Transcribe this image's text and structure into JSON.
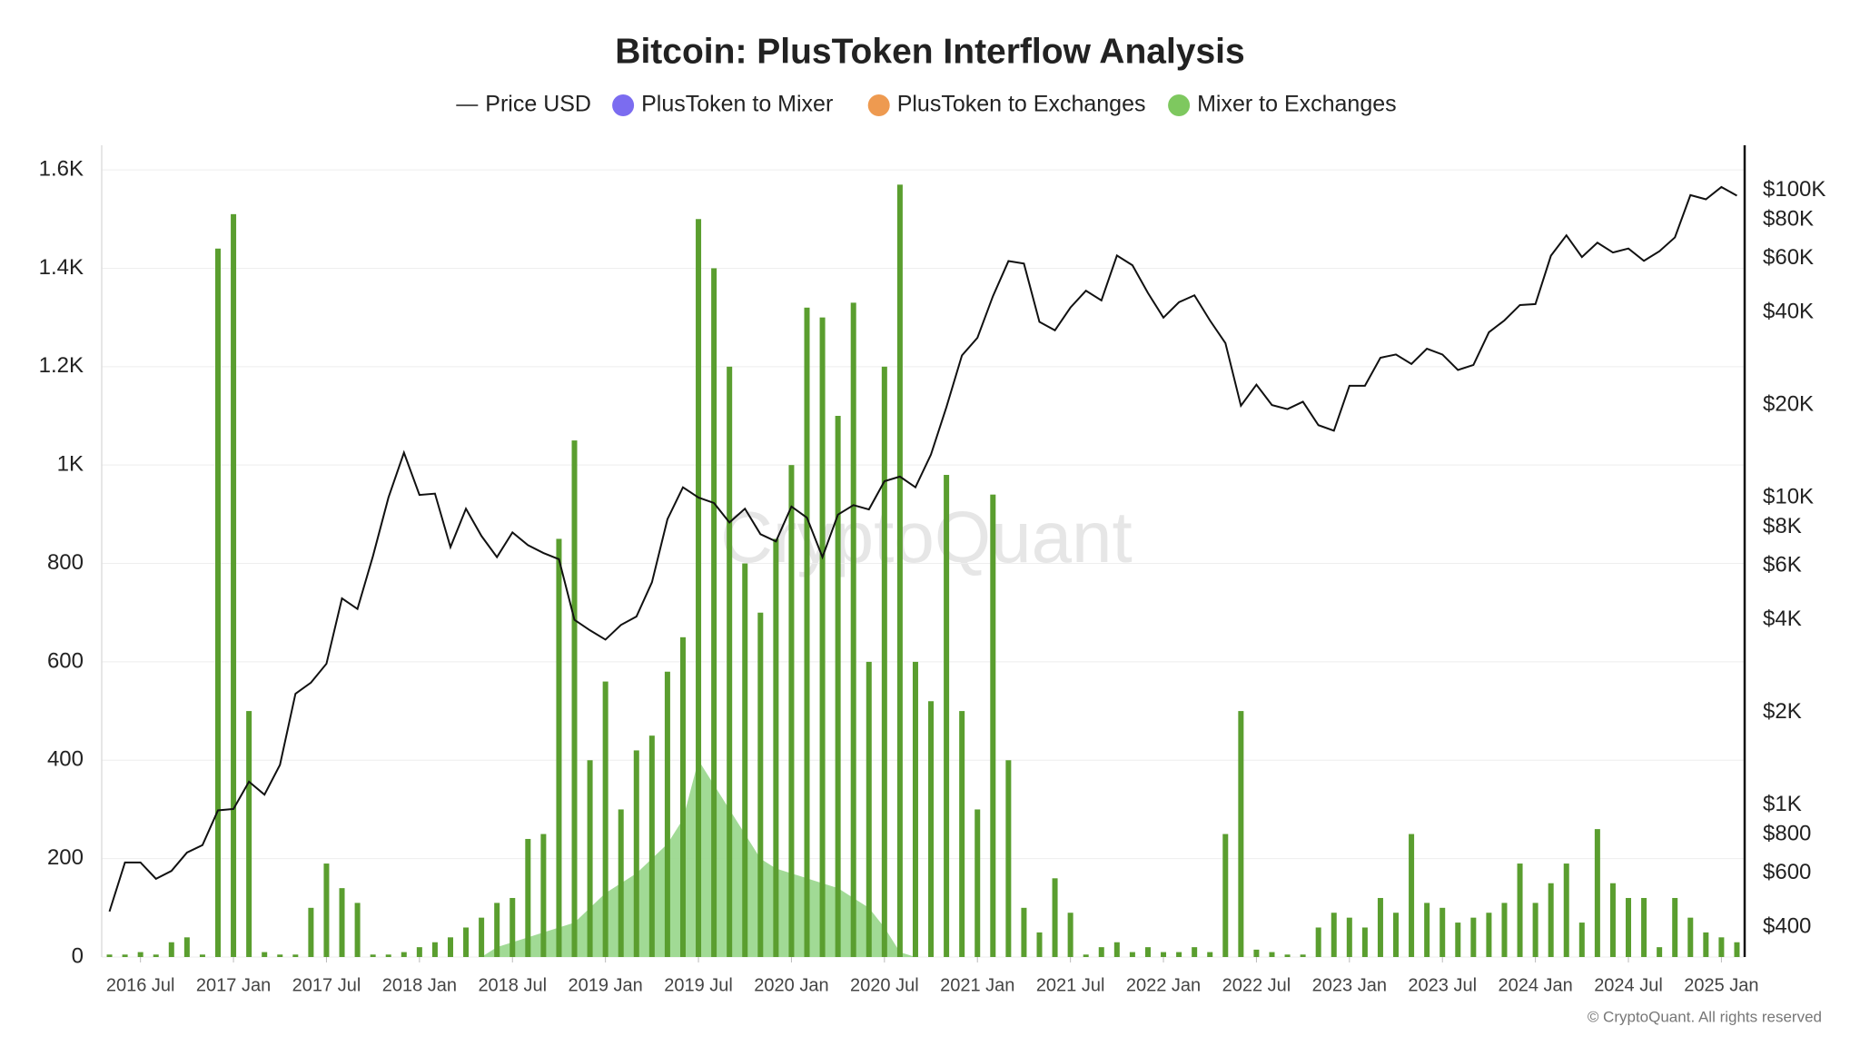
{
  "chart_data": {
    "type": "combo",
    "title": "Bitcoin: PlusToken Interflow Analysis",
    "watermark": "CryptoQuant",
    "footnote": "© CryptoQuant. All rights reserved",
    "grid": true,
    "legend": "top",
    "y2_log": true,
    "x": [
      "2016-05",
      "2016-06",
      "2016-07",
      "2016-08",
      "2016-09",
      "2016-10",
      "2016-11",
      "2016-12",
      "2017-01",
      "2017-02",
      "2017-03",
      "2017-04",
      "2017-05",
      "2017-06",
      "2017-07",
      "2017-08",
      "2017-09",
      "2017-10",
      "2017-11",
      "2017-12",
      "2018-01",
      "2018-02",
      "2018-03",
      "2018-04",
      "2018-05",
      "2018-06",
      "2018-07",
      "2018-08",
      "2018-09",
      "2018-10",
      "2018-11",
      "2018-12",
      "2019-01",
      "2019-02",
      "2019-03",
      "2019-04",
      "2019-05",
      "2019-06",
      "2019-07",
      "2019-08",
      "2019-09",
      "2019-10",
      "2019-11",
      "2019-12",
      "2020-01",
      "2020-02",
      "2020-03",
      "2020-04",
      "2020-05",
      "2020-06",
      "2020-07",
      "2020-08",
      "2020-09",
      "2020-10",
      "2020-11",
      "2020-12",
      "2021-01",
      "2021-02",
      "2021-03",
      "2021-04",
      "2021-05",
      "2021-06",
      "2021-07",
      "2021-08",
      "2021-09",
      "2021-10",
      "2021-11",
      "2021-12",
      "2022-01",
      "2022-02",
      "2022-03",
      "2022-04",
      "2022-05",
      "2022-06",
      "2022-07",
      "2022-08",
      "2022-09",
      "2022-10",
      "2022-11",
      "2022-12",
      "2023-01",
      "2023-02",
      "2023-03",
      "2023-04",
      "2023-05",
      "2023-06",
      "2023-07",
      "2023-08",
      "2023-09",
      "2023-10",
      "2023-11",
      "2023-12",
      "2024-01",
      "2024-02",
      "2024-03",
      "2024-04",
      "2024-05",
      "2024-06",
      "2024-07",
      "2024-08",
      "2024-09",
      "2024-10",
      "2024-11",
      "2024-12",
      "2025-01",
      "2025-02"
    ],
    "series": [
      {
        "name": "Price USD",
        "type": "line",
        "axis": "y2",
        "color": "#111111",
        "values": [
          450,
          650,
          650,
          575,
          610,
          700,
          740,
          960,
          970,
          1190,
          1080,
          1350,
          2300,
          2500,
          2880,
          4700,
          4340,
          6450,
          10000,
          14000,
          10200,
          10300,
          6900,
          9200,
          7500,
          6400,
          7700,
          7000,
          6600,
          6300,
          4000,
          3700,
          3450,
          3850,
          4100,
          5300,
          8500,
          10800,
          10000,
          9600,
          8300,
          9200,
          7600,
          7200,
          9350,
          8600,
          6400,
          8800,
          9450,
          9150,
          11300,
          11700,
          10800,
          13800,
          19700,
          29000,
          33100,
          45200,
          58800,
          57700,
          37300,
          35000,
          41500,
          47100,
          43800,
          61300,
          57000,
          46300,
          38500,
          43200,
          45500,
          37700,
          31800,
          19900,
          23300,
          20000,
          19400,
          20500,
          17200,
          16500,
          23100,
          23100,
          28500,
          29200,
          27200,
          30500,
          29200,
          26000,
          27000,
          34500,
          37700,
          42300,
          42600,
          61200,
          71300,
          60600,
          67500,
          62700,
          64600,
          58900,
          63300,
          70200,
          96400,
          93400,
          102400,
          96000
        ]
      },
      {
        "name": "PlusToken to Mixer",
        "type": "area",
        "color": "#7b6cf0",
        "fill": "#97d68a",
        "values": [
          0,
          0,
          0,
          0,
          0,
          0,
          0,
          0,
          0,
          0,
          0,
          0,
          0,
          0,
          0,
          0,
          0,
          0,
          0,
          0,
          0,
          0,
          0,
          0,
          0,
          20,
          30,
          40,
          50,
          60,
          70,
          100,
          130,
          150,
          170,
          200,
          230,
          280,
          400,
          350,
          300,
          250,
          200,
          180,
          170,
          160,
          150,
          140,
          120,
          100,
          60,
          10,
          0,
          0,
          0,
          0,
          0,
          0,
          0,
          0,
          0,
          0,
          0,
          0,
          0,
          0,
          0,
          0,
          0,
          0,
          0,
          0,
          0,
          0,
          0,
          0,
          0,
          0,
          0,
          0,
          0,
          0,
          0,
          0,
          0,
          0,
          0,
          0,
          0,
          0,
          0,
          0,
          0,
          0,
          0,
          0,
          0,
          0,
          0,
          0,
          0,
          0,
          0,
          0,
          0,
          0
        ]
      },
      {
        "name": "PlusToken to Exchanges",
        "type": "bar",
        "color": "#ee9a50",
        "fill": "#c8603c",
        "values": [
          0,
          0,
          0,
          0,
          0,
          0,
          0,
          0,
          0,
          0,
          0,
          0,
          0,
          0,
          0,
          0,
          0,
          0,
          0,
          0,
          0,
          0,
          0,
          0,
          0,
          0,
          0,
          0,
          0,
          0,
          0,
          0,
          0,
          0,
          0,
          0,
          0,
          280,
          1220,
          0,
          0,
          0,
          0,
          0,
          0,
          0,
          0,
          0,
          0,
          0,
          0,
          0,
          0,
          0,
          0,
          0,
          0,
          0,
          0,
          0,
          0,
          0,
          0,
          0,
          0,
          0,
          0,
          0,
          0,
          0,
          0,
          0,
          0,
          0,
          0,
          0,
          0,
          0,
          0,
          0,
          0,
          0,
          0,
          0,
          0,
          0,
          0,
          0,
          0,
          0,
          0,
          0,
          0,
          0,
          0,
          0,
          0,
          0,
          0,
          0,
          0,
          0,
          0,
          0,
          0,
          0
        ]
      },
      {
        "name": "Mixer to Exchanges",
        "type": "bar",
        "color": "#7ec85f",
        "fill": "#5a9e2f",
        "values": [
          5,
          5,
          10,
          5,
          30,
          40,
          5,
          1440,
          1510,
          500,
          10,
          5,
          5,
          100,
          190,
          140,
          110,
          5,
          5,
          10,
          20,
          30,
          40,
          60,
          80,
          110,
          120,
          240,
          250,
          850,
          1050,
          400,
          560,
          300,
          420,
          450,
          580,
          650,
          1500,
          1400,
          1200,
          800,
          700,
          850,
          1000,
          1320,
          1300,
          1100,
          1330,
          600,
          1200,
          1570,
          600,
          520,
          980,
          500,
          300,
          940,
          400,
          100,
          50,
          160,
          90,
          5,
          20,
          30,
          10,
          20,
          10,
          10,
          20,
          10,
          250,
          500,
          15,
          10,
          5,
          5,
          60,
          90,
          80,
          60,
          120,
          90,
          250,
          110,
          100,
          70,
          80,
          90,
          110,
          190,
          110,
          150,
          190,
          70,
          260,
          150,
          120,
          120,
          20,
          120,
          80,
          50,
          40,
          30
        ]
      }
    ],
    "ylim": [
      0,
      1650
    ],
    "yticks": [
      0,
      200,
      400,
      600,
      800,
      {
        "value": 1000,
        "label": "1K"
      },
      {
        "value": 1200,
        "label": "1.2K"
      },
      {
        "value": 1400,
        "label": "1.4K"
      },
      {
        "value": 1600,
        "label": "1.6K"
      }
    ],
    "y2lim": [
      320,
      140000
    ],
    "y2ticks": [
      {
        "value": 400,
        "label": "$400"
      },
      {
        "value": 600,
        "label": "$600"
      },
      {
        "value": 800,
        "label": "$800"
      },
      {
        "value": 1000,
        "label": "$1K"
      },
      {
        "value": 2000,
        "label": "$2K"
      },
      {
        "value": 4000,
        "label": "$4K"
      },
      {
        "value": 6000,
        "label": "$6K"
      },
      {
        "value": 8000,
        "label": "$8K"
      },
      {
        "value": 10000,
        "label": "$10K"
      },
      {
        "value": 20000,
        "label": "$20K"
      },
      {
        "value": 40000,
        "label": "$40K"
      },
      {
        "value": 60000,
        "label": "$60K"
      },
      {
        "value": 80000,
        "label": "$80K"
      },
      {
        "value": 100000,
        "label": "$100K"
      }
    ],
    "xticks": [
      {
        "value": "2016-07",
        "label": "2016 Jul"
      },
      {
        "value": "2017-01",
        "label": "2017 Jan"
      },
      {
        "value": "2017-07",
        "label": "2017 Jul"
      },
      {
        "value": "2018-01",
        "label": "2018 Jan"
      },
      {
        "value": "2018-07",
        "label": "2018 Jul"
      },
      {
        "value": "2019-01",
        "label": "2019 Jan"
      },
      {
        "value": "2019-07",
        "label": "2019 Jul"
      },
      {
        "value": "2020-01",
        "label": "2020 Jan"
      },
      {
        "value": "2020-07",
        "label": "2020 Jul"
      },
      {
        "value": "2021-01",
        "label": "2021 Jan"
      },
      {
        "value": "2021-07",
        "label": "2021 Jul"
      },
      {
        "value": "2022-01",
        "label": "2022 Jan"
      },
      {
        "value": "2022-07",
        "label": "2022 Jul"
      },
      {
        "value": "2023-01",
        "label": "2023 Jan"
      },
      {
        "value": "2023-07",
        "label": "2023 Jul"
      },
      {
        "value": "2024-01",
        "label": "2024 Jan"
      },
      {
        "value": "2024-07",
        "label": "2024 Jul"
      },
      {
        "value": "2025-01",
        "label": "2025 Jan"
      }
    ]
  }
}
